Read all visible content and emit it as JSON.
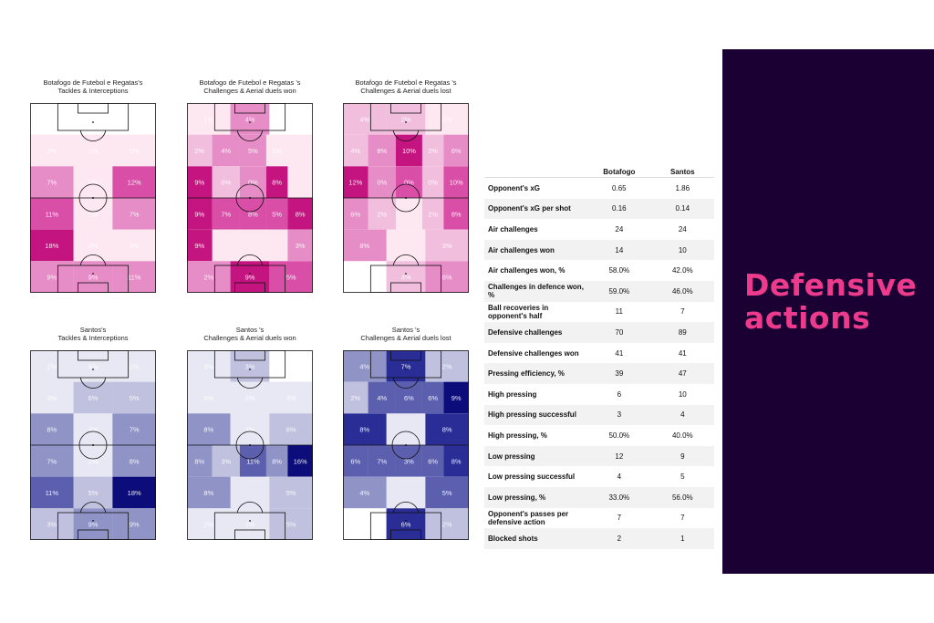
{
  "colors": {
    "botafogo": [
      "#ffffff",
      "#fde7f1",
      "#f2bede",
      "#e68cc6",
      "#d94fa8",
      "#c4147f"
    ],
    "santos": [
      "#ffffff",
      "#e7e8f3",
      "#bfc1de",
      "#8f93c6",
      "#5b5fae",
      "#2a2d96",
      "#0c0c7a"
    ],
    "panel_bg": "#1a0033",
    "title_accent": "#ec3b8c"
  },
  "side_panel": {
    "title_line1": "Defensive",
    "title_line2": "actions"
  },
  "chart_data": [
    {
      "type": "heatmap",
      "title_line1": "Botafogo de Futebol e Regatas's",
      "title_line2": "Tackles & Interceptions",
      "palette": "botafogo",
      "rows": [
        {
          "values": [
            0,
            0,
            0
          ],
          "levels": [
            0,
            0,
            0
          ]
        },
        {
          "values": [
            2,
            1,
            1
          ],
          "levels": [
            1,
            1,
            1
          ]
        },
        {
          "values": [
            7,
            1,
            12
          ],
          "levels": [
            3,
            1,
            4
          ]
        },
        {
          "values": [
            11,
            1,
            7
          ],
          "levels": [
            4,
            1,
            3
          ]
        },
        {
          "values": [
            18,
            2,
            3
          ],
          "levels": [
            5,
            1,
            1
          ]
        },
        {
          "values": [
            9,
            9,
            11
          ],
          "levels": [
            3,
            3,
            3
          ]
        }
      ]
    },
    {
      "type": "heatmap",
      "title_line1": "Botafogo de Futebol e Regatas 's",
      "title_line2": "Challenges & Aerial duels won",
      "palette": "botafogo",
      "rows": [
        {
          "values": [
            1,
            4,
            0
          ],
          "levels": [
            1,
            3,
            0
          ]
        },
        {
          "values": [
            2,
            4,
            5,
            1
          ],
          "levels": [
            2,
            3,
            3,
            1
          ],
          "cols": [
            0,
            1,
            2,
            3
          ]
        },
        {
          "values": [
            9,
            0,
            0,
            8
          ],
          "levels": [
            5,
            2,
            3,
            5
          ],
          "cols": [
            0,
            1,
            2,
            3
          ]
        },
        {
          "values": [
            9,
            7,
            8,
            5,
            8
          ],
          "levels": [
            5,
            4,
            4,
            4,
            5
          ],
          "cols": [
            0,
            1,
            2,
            3,
            4
          ]
        },
        {
          "values": [
            9,
            3
          ],
          "levels": [
            5,
            3
          ],
          "cols": [
            0,
            4
          ]
        },
        {
          "values": [
            2,
            9,
            5
          ],
          "levels": [
            3,
            5,
            4
          ]
        }
      ]
    },
    {
      "type": "heatmap",
      "title_line1": "Botafogo de Futebol e Regatas 's",
      "title_line2": "Challenges & Aerial duels lost",
      "palette": "botafogo",
      "rows": [
        {
          "values": [
            4,
            2,
            2
          ],
          "levels": [
            2,
            2,
            1
          ]
        },
        {
          "values": [
            4,
            8,
            10,
            2,
            6
          ],
          "levels": [
            2,
            3,
            5,
            2,
            3
          ]
        },
        {
          "values": [
            12,
            0,
            0,
            0,
            10
          ],
          "levels": [
            5,
            3,
            4,
            2,
            4
          ]
        },
        {
          "values": [
            6,
            2,
            2,
            8
          ],
          "levels": [
            3,
            2,
            2,
            4
          ]
        },
        {
          "values": [
            8,
            3
          ],
          "levels": [
            3,
            2
          ]
        },
        {
          "values": [
            2,
            4,
            6
          ],
          "levels": [
            0,
            2,
            3
          ]
        }
      ]
    },
    {
      "type": "heatmap",
      "title_line1": "Santos's",
      "title_line2": "Tackles & Interceptions",
      "palette": "santos",
      "rows": [
        {
          "values": [
            2,
            4,
            2
          ],
          "levels": [
            1,
            1,
            1
          ]
        },
        {
          "values": [
            3,
            6,
            5
          ],
          "levels": [
            1,
            2,
            2
          ]
        },
        {
          "values": [
            8,
            3,
            7
          ],
          "levels": [
            3,
            1,
            3
          ]
        },
        {
          "values": [
            7,
            2,
            8
          ],
          "levels": [
            3,
            1,
            3
          ]
        },
        {
          "values": [
            11,
            5,
            18
          ],
          "levels": [
            4,
            2,
            6
          ]
        },
        {
          "values": [
            3,
            9,
            9
          ],
          "levels": [
            2,
            3,
            3
          ]
        }
      ]
    },
    {
      "type": "heatmap",
      "title_line1": "Santos 's",
      "title_line2": "Challenges & Aerial duels won",
      "palette": "santos",
      "rows": [
        {
          "values": [
            3,
            3,
            0
          ],
          "levels": [
            1,
            2,
            0
          ]
        },
        {
          "values": [
            6,
            2,
            3
          ],
          "levels": [
            1,
            1,
            1
          ]
        },
        {
          "values": [
            8,
            3,
            6
          ],
          "levels": [
            3,
            1,
            2
          ]
        },
        {
          "values": [
            8,
            3,
            11,
            8,
            16
          ],
          "levels": [
            3,
            2,
            4,
            3,
            6
          ]
        },
        {
          "values": [
            8,
            5
          ],
          "levels": [
            3,
            2
          ]
        },
        {
          "values": [
            2,
            1,
            5
          ],
          "levels": [
            1,
            1,
            2
          ]
        }
      ]
    },
    {
      "type": "heatmap",
      "title_line1": "Santos 's",
      "title_line2": "Challenges & Aerial duels lost",
      "palette": "santos",
      "rows": [
        {
          "values": [
            4,
            7,
            2
          ],
          "levels": [
            3,
            5,
            2
          ]
        },
        {
          "values": [
            2,
            4,
            6,
            6,
            9
          ],
          "levels": [
            2,
            4,
            4,
            4,
            6
          ]
        },
        {
          "values": [
            8,
            8
          ],
          "levels": [
            5,
            5
          ]
        },
        {
          "values": [
            6,
            7,
            3,
            6,
            8
          ],
          "levels": [
            4,
            4,
            4,
            4,
            5
          ]
        },
        {
          "values": [
            4,
            5
          ],
          "levels": [
            3,
            4
          ]
        },
        {
          "values": [
            1,
            6,
            2
          ],
          "levels": [
            0,
            5,
            2
          ]
        }
      ]
    }
  ],
  "table": {
    "headers": [
      "",
      "Botafogo",
      "Santos"
    ],
    "rows": [
      {
        "label": "Opponent's xG",
        "a": "0.65",
        "b": "1.86"
      },
      {
        "label": "Opponent's xG per shot",
        "a": "0.16",
        "b": "0.14"
      },
      {
        "label": "Air challenges",
        "a": "24",
        "b": "24"
      },
      {
        "label": "Air challenges won",
        "a": "14",
        "b": "10"
      },
      {
        "label": "Air challenges won, %",
        "a": "58.0%",
        "b": "42.0%"
      },
      {
        "label": "Challenges in defence won, %",
        "a": "59.0%",
        "b": "46.0%"
      },
      {
        "label": "Ball recoveries in opponent's half",
        "a": "11",
        "b": "7"
      },
      {
        "label": "Defensive challenges",
        "a": "70",
        "b": "89"
      },
      {
        "label": "Defensive challenges won",
        "a": "41",
        "b": "41"
      },
      {
        "label": "Pressing efficiency, %",
        "a": "39",
        "b": "47"
      },
      {
        "label": "High pressing",
        "a": "6",
        "b": "10"
      },
      {
        "label": "High pressing successful",
        "a": "3",
        "b": "4"
      },
      {
        "label": "High pressing, %",
        "a": "50.0%",
        "b": "40.0%"
      },
      {
        "label": "Low pressing",
        "a": "12",
        "b": "9"
      },
      {
        "label": "Low pressing successful",
        "a": "4",
        "b": "5"
      },
      {
        "label": "Low pressing, %",
        "a": "33.0%",
        "b": "56.0%"
      },
      {
        "label": "Opponent's passes per defensive action",
        "a": "7",
        "b": "7"
      },
      {
        "label": "Blocked shots",
        "a": "2",
        "b": "1"
      }
    ]
  }
}
